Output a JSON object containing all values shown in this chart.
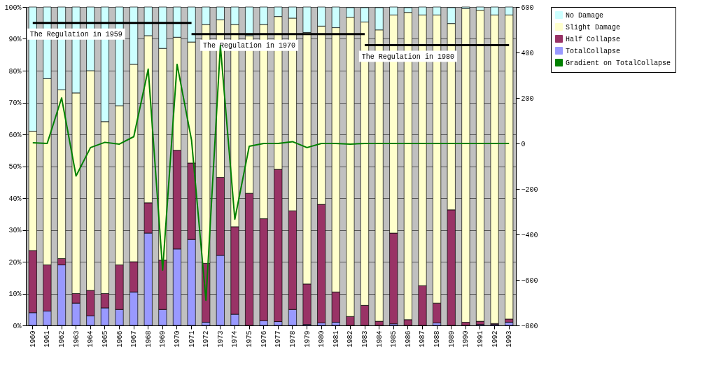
{
  "chart_data": {
    "type": "bar",
    "stacked": true,
    "categories": [
      "1960",
      "1961",
      "1962",
      "1963",
      "1964",
      "1965",
      "1966",
      "1967",
      "1968",
      "1969",
      "1970",
      "1971",
      "1972",
      "1973",
      "1974",
      "1975",
      "1976",
      "1977",
      "1978",
      "1979",
      "1980",
      "1981",
      "1982",
      "1983",
      "1984",
      "1985",
      "1986",
      "1987",
      "1988",
      "1989",
      "1990",
      "1991",
      "1992",
      "1993"
    ],
    "series": [
      {
        "name": "TotalCollapse",
        "color": "#9999ff",
        "values": [
          4,
          4.5,
          19,
          7,
          3,
          5.5,
          5,
          10.5,
          29,
          5,
          24,
          27,
          1,
          22,
          3.5,
          0,
          1.5,
          1.2,
          5,
          0.3,
          0.8,
          1,
          0,
          0,
          0,
          0.5,
          0,
          0,
          0.8,
          0,
          0,
          0.3,
          0.3,
          1
        ]
      },
      {
        "name": "Half Collapse",
        "color": "#993366",
        "values": [
          19.5,
          14.5,
          2,
          3,
          8,
          4.5,
          14,
          9.5,
          9.5,
          15.5,
          31,
          24,
          18.5,
          24.5,
          27.5,
          41.5,
          32,
          47.8,
          31,
          12.7,
          37.2,
          9.5,
          2.8,
          6.3,
          1.3,
          28.5,
          1.8,
          12.5,
          6.2,
          36.3,
          1,
          1,
          0.3,
          1
        ]
      },
      {
        "name": "Slight Damage",
        "color": "#ffffcc",
        "values": [
          37.5,
          58.5,
          53,
          63,
          69,
          54,
          50,
          62,
          52.5,
          66.5,
          35.5,
          38,
          75,
          49.5,
          63.5,
          49.5,
          61,
          48,
          60.5,
          79,
          56,
          83,
          94,
          89,
          91.5,
          68.5,
          96.5,
          85,
          90.5,
          58.5,
          98.5,
          97.7,
          96.9,
          95.5
        ]
      },
      {
        "name": "No Damage",
        "color": "#ccffff",
        "values": [
          39,
          22.5,
          26,
          27,
          20,
          36,
          31,
          18,
          9,
          13,
          9.5,
          11,
          5.5,
          4,
          5.5,
          9,
          5.5,
          3,
          3.5,
          8,
          6,
          6.5,
          3,
          4.5,
          7,
          2.5,
          1.5,
          2.5,
          2.5,
          5,
          0.5,
          1,
          2.5,
          2.5
        ]
      },
      {
        "name": "Gradient on TotalCollapse",
        "type": "line",
        "axis": "y2",
        "color": "#008000",
        "values": [
          3,
          0,
          200,
          -143,
          -18,
          5,
          -3,
          30,
          327,
          -557,
          348,
          15,
          -690,
          430,
          -333,
          -12,
          0,
          0,
          8,
          -18,
          0,
          0,
          -3,
          0,
          0,
          0,
          0,
          0,
          0,
          0,
          0,
          0,
          0,
          0
        ]
      }
    ],
    "ylim": [
      0,
      100
    ],
    "yticks": [
      {
        "value": 0,
        "label": "0%"
      },
      {
        "value": 10,
        "label": "10%"
      },
      {
        "value": 20,
        "label": "20%"
      },
      {
        "value": 30,
        "label": "30%"
      },
      {
        "value": 40,
        "label": "40%"
      },
      {
        "value": 50,
        "label": "50%"
      },
      {
        "value": 60,
        "label": "60%"
      },
      {
        "value": 70,
        "label": "70%"
      },
      {
        "value": 80,
        "label": "80%"
      },
      {
        "value": 90,
        "label": "90%"
      },
      {
        "value": 100,
        "label": "100%"
      }
    ],
    "y2lim": [
      -800,
      600
    ],
    "y2ticks": [
      -800,
      -600,
      -400,
      -200,
      0,
      200,
      400,
      600
    ],
    "ref_lines": [
      {
        "axis": "y",
        "value": 95,
        "label": "The Regulation in 1959",
        "color": "#000000"
      },
      {
        "axis": "y",
        "value": 91.5,
        "label": "The Regulation in 1970",
        "color": "#000000"
      },
      {
        "axis": "y",
        "value": 88,
        "label": "The Regulation in 1980",
        "color": "#000000"
      }
    ],
    "grid": "y",
    "legend": "right"
  }
}
